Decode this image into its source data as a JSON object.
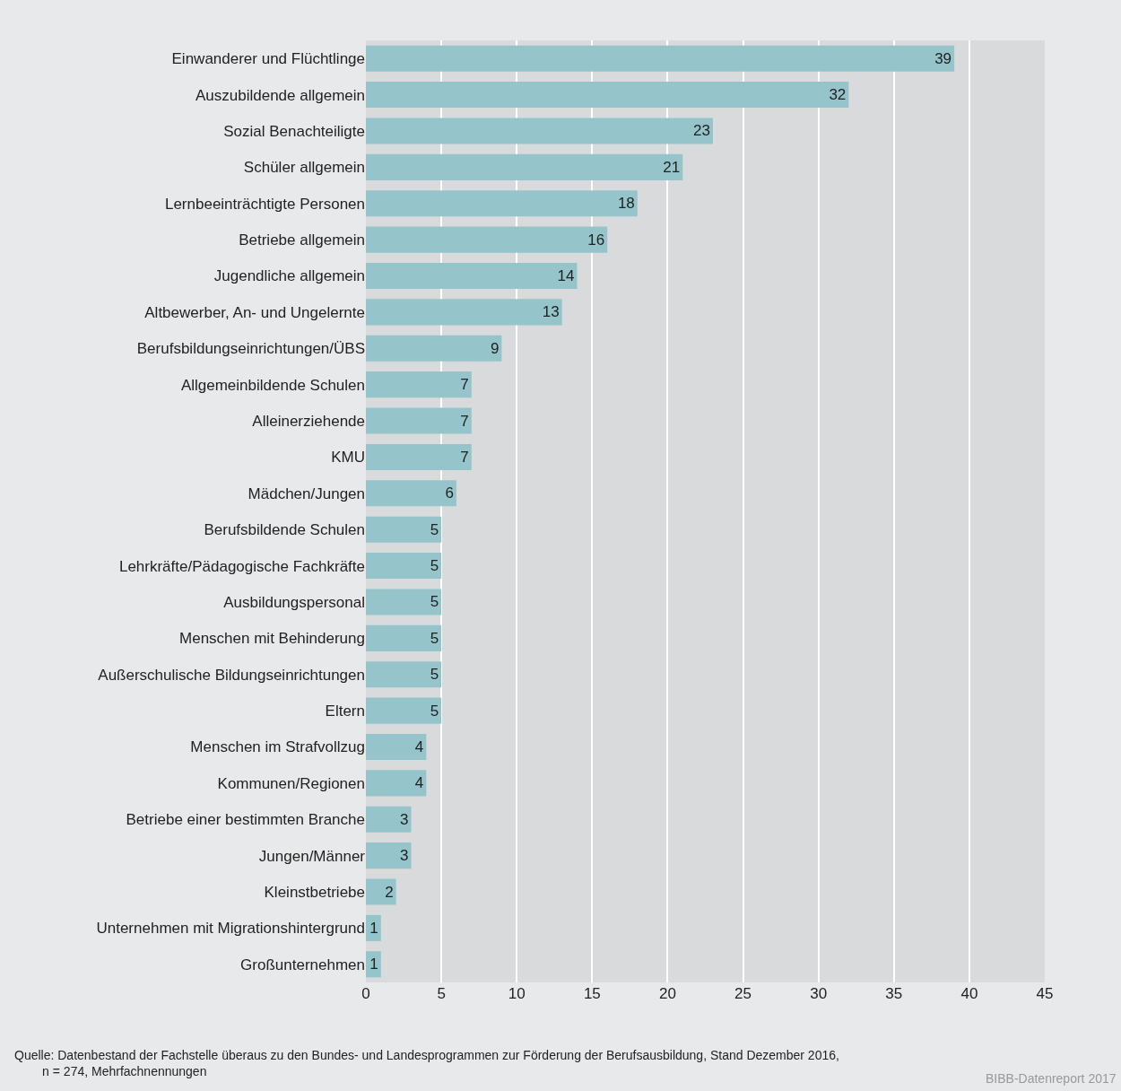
{
  "chart_data": {
    "type": "bar",
    "orientation": "horizontal",
    "categories": [
      "Einwanderer und Flüchtlinge",
      "Auszubildende allgemein",
      "Sozial Benachteiligte",
      "Schüler allgemein",
      "Lernbeeinträchtigte Personen",
      "Betriebe allgemein",
      "Jugendliche allgemein",
      "Altbewerber, An- und Ungelernte",
      "Berufsbildungseinrichtungen/ÜBS",
      "Allgemeinbildende Schulen",
      "Alleinerziehende",
      "KMU",
      "Mädchen/Jungen",
      "Berufsbildende Schulen",
      "Lehrkräfte/Pädagogische Fachkräfte",
      "Ausbildungspersonal",
      "Menschen mit Behinderung",
      "Außerschulische Bildungseinrichtungen",
      "Eltern",
      "Menschen im Strafvollzug",
      "Kommunen/Regionen",
      "Betriebe einer bestimmten Branche",
      "Jungen/Männer",
      "Kleinstbetriebe",
      "Unternehmen mit Migrationshintergrund",
      "Großunternehmen"
    ],
    "values": [
      39,
      32,
      23,
      21,
      18,
      16,
      14,
      13,
      9,
      7,
      7,
      7,
      6,
      5,
      5,
      5,
      5,
      5,
      5,
      4,
      4,
      3,
      3,
      2,
      1,
      1
    ],
    "color": "#95c5cb",
    "data_labels": true,
    "xlim": [
      0,
      45
    ],
    "xticks": [
      0,
      5,
      10,
      15,
      20,
      25,
      30,
      35,
      40,
      45
    ],
    "grid": "x",
    "legend": false,
    "annotations": [
      "Quelle: Datenbestand der Fachstelle überaus zu den Bundes- und Landesprogrammen zur Förderung der Berufsausbildung, Stand Dezember 2016,\n        n = 274, Mehrfachnennungen",
      "BIBB-Datenreport 2017"
    ]
  }
}
